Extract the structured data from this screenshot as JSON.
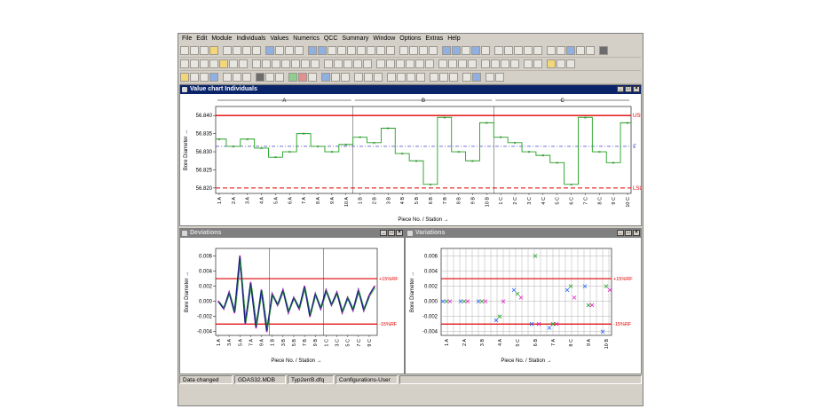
{
  "menu": [
    "File",
    "Edit",
    "Module",
    "Individuals",
    "Values",
    "Numerics",
    "QCC",
    "Summary",
    "Window",
    "Options",
    "Extras",
    "Help"
  ],
  "colors": {
    "limit": "#e00000",
    "mean": "#2020c0",
    "series": "#20a020",
    "deviation": "#202080",
    "variation_b": "#2060ff",
    "variation_m": "#e020c0"
  },
  "window_main": {
    "title": "Value chart Individuals"
  },
  "window_dev": {
    "title": "Deviations"
  },
  "window_var": {
    "title": "Variations"
  },
  "main_chart": {
    "ylabel": "Bore Diameter →",
    "xlabel": "Piece No. / Station →",
    "yticks": [
      "56.840",
      "56.835",
      "56.830",
      "56.825",
      "56.820"
    ],
    "groups": [
      "A",
      "B",
      "C"
    ],
    "usl_label": "USL",
    "lsl_label": "LSL",
    "mean_label": "x̄̄",
    "xticks": [
      "1 A",
      "2 A",
      "3 A",
      "4 A",
      "5 A",
      "6 A",
      "7 A",
      "8 A",
      "9 A",
      "10 A",
      "1 B",
      "2 B",
      "3 B",
      "4 B",
      "5 B",
      "6 B",
      "7 B",
      "8 B",
      "9 B",
      "10 B",
      "1 C",
      "2 C",
      "3 C",
      "4 C",
      "5 C",
      "6 C",
      "7 C",
      "8 C",
      "9 C",
      "10 C"
    ]
  },
  "dev_chart": {
    "ylabel": "Bore Diameter →",
    "xlabel": "Piece No. / Station →",
    "yticks": [
      "0.006",
      "0.004",
      "0.002",
      "0.000",
      "-0.002",
      "-0.004"
    ],
    "upper_label": "+15%RF",
    "lower_label": "-15%RF",
    "xticks": [
      "1 A",
      "3 A",
      "5 A",
      "7 A",
      "9 A",
      "1 B",
      "3 B",
      "5 B",
      "7 B",
      "9 B",
      "1 C",
      "3 C",
      "5 C",
      "7 C",
      "9 C"
    ]
  },
  "var_chart": {
    "ylabel": "Bore Diameter →",
    "xlabel": "Piece No. / Station →",
    "yticks": [
      "0.006",
      "0.004",
      "0.002",
      "0.000",
      "-0.002",
      "-0.004"
    ],
    "upper_label": "+15%RF",
    "lower_label": "-15%RF",
    "xticks": [
      "1 A",
      "2 A",
      "3 B",
      "4 A",
      "5 C",
      "6 B",
      "7 A",
      "8 C",
      "9 A",
      "10 B"
    ]
  },
  "chart_data": [
    {
      "type": "line",
      "x": [
        "1 A",
        "2 A",
        "3 A",
        "4 A",
        "5 A",
        "6 A",
        "7 A",
        "8 A",
        "9 A",
        "10 A",
        "1 B",
        "2 B",
        "3 B",
        "4 B",
        "5 B",
        "6 B",
        "7 B",
        "8 B",
        "9 B",
        "10 B",
        "1 C",
        "2 C",
        "3 C",
        "4 C",
        "5 C",
        "6 C",
        "7 C",
        "8 C",
        "9 C",
        "10 C"
      ],
      "series": [
        {
          "values": [
            56.8335,
            56.8315,
            56.8335,
            56.831,
            56.8285,
            56.83,
            56.835,
            56.8315,
            56.83,
            56.832,
            56.834,
            56.8325,
            56.8365,
            56.8295,
            56.8275,
            56.821,
            56.8395,
            56.83,
            56.8275,
            56.838,
            56.834,
            56.8325,
            56.83,
            56.829,
            56.827,
            56.821,
            56.8395,
            56.83,
            56.827,
            56.838
          ]
        }
      ],
      "limits": {
        "usl": 56.84,
        "lsl": 56.82,
        "mean": 56.8315
      },
      "ylim": [
        56.8185,
        56.8425
      ]
    },
    {
      "type": "line",
      "x": [
        "1 A",
        "2 A",
        "3 A",
        "4 A",
        "5 A",
        "6 A",
        "7 A",
        "8 A",
        "9 A",
        "10 A",
        "1 B",
        "2 B",
        "3 B",
        "4 B",
        "5 B",
        "6 B",
        "7 B",
        "8 B",
        "9 B",
        "10 B",
        "1 C",
        "2 C",
        "3 C",
        "4 C",
        "5 C",
        "6 C",
        "7 C",
        "8 C",
        "9 C",
        "10 C"
      ],
      "series": [
        {
          "values": [
            0.0,
            -0.001,
            0.0012,
            -0.0015,
            0.006,
            -0.003,
            0.0025,
            -0.0035,
            0.0015,
            -0.004,
            0.001,
            -0.0005,
            0.0015,
            -0.0015,
            0.0005,
            -0.001,
            0.002,
            -0.002,
            0.001,
            -0.001,
            0.0015,
            -0.0005,
            0.0012,
            -0.0015,
            0.0005,
            -0.0012,
            0.0015,
            -0.0012,
            0.0008,
            0.002
          ]
        }
      ],
      "limits": {
        "upper": 0.003,
        "lower": -0.003
      },
      "ylim": [
        -0.0045,
        0.007
      ]
    },
    {
      "type": "scatter",
      "x": [
        "1 A",
        "2 A",
        "3 B",
        "4 A",
        "5 C",
        "6 B",
        "7 A",
        "8 C",
        "9 A",
        "10 B"
      ],
      "series": [
        {
          "values": [
            0.0,
            0.0,
            0.0,
            -0.0025,
            0.0015,
            -0.003,
            -0.0035,
            0.0015,
            0.002,
            -0.004
          ]
        },
        {
          "values": [
            0.0,
            0.0,
            0.0,
            -0.002,
            0.001,
            0.006,
            -0.003,
            0.002,
            -0.0005,
            0.002
          ]
        },
        {
          "values": [
            0.0,
            0.0,
            0.0,
            0.0,
            0.0005,
            -0.003,
            -0.003,
            0.0005,
            -0.0005,
            0.0015
          ]
        }
      ],
      "limits": {
        "upper": 0.003,
        "lower": -0.003
      },
      "ylim": [
        -0.0045,
        0.007
      ]
    }
  ]
}
